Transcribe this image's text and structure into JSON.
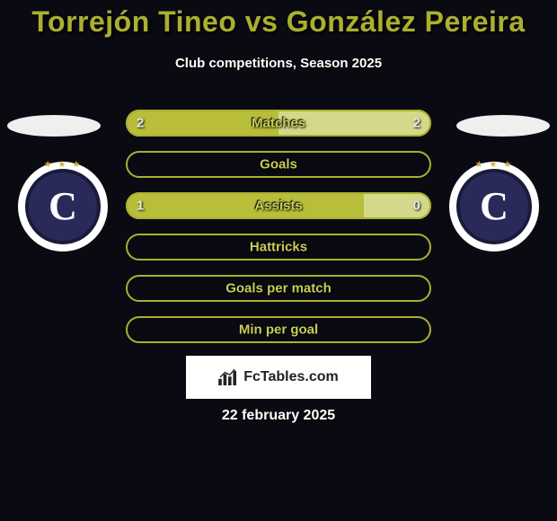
{
  "colors": {
    "background": "#0a0a12",
    "accent": "#aab02f",
    "accent_dark": "#8a8f20",
    "fill_left": "#b8be3a",
    "fill_right": "#d4d98a",
    "bar_label": "#c8cd5a",
    "bar_value": "#e8e8e8",
    "title": "#aab02f",
    "ellipse": "#efefef"
  },
  "title": "Torrejón Tineo vs González Pereira",
  "subtitle": "Club competitions, Season 2025",
  "rows": [
    {
      "label": "Matches",
      "left_val": "2",
      "right_val": "2",
      "left_pct": 50,
      "right_pct": 50,
      "show_vals": true
    },
    {
      "label": "Goals",
      "left_val": "",
      "right_val": "",
      "left_pct": 0,
      "right_pct": 0,
      "show_vals": false
    },
    {
      "label": "Assists",
      "left_val": "1",
      "right_val": "0",
      "left_pct": 78,
      "right_pct": 22,
      "show_vals": true
    },
    {
      "label": "Hattricks",
      "left_val": "",
      "right_val": "",
      "left_pct": 0,
      "right_pct": 0,
      "show_vals": false
    },
    {
      "label": "Goals per match",
      "left_val": "",
      "right_val": "",
      "left_pct": 0,
      "right_pct": 0,
      "show_vals": false
    },
    {
      "label": "Min per goal",
      "left_val": "",
      "right_val": "",
      "left_pct": 0,
      "right_pct": 0,
      "show_vals": false
    }
  ],
  "watermark": "FcTables.com",
  "date": "22 february 2025",
  "badge": {
    "letter": "C",
    "stars": "★ ★ ★"
  }
}
